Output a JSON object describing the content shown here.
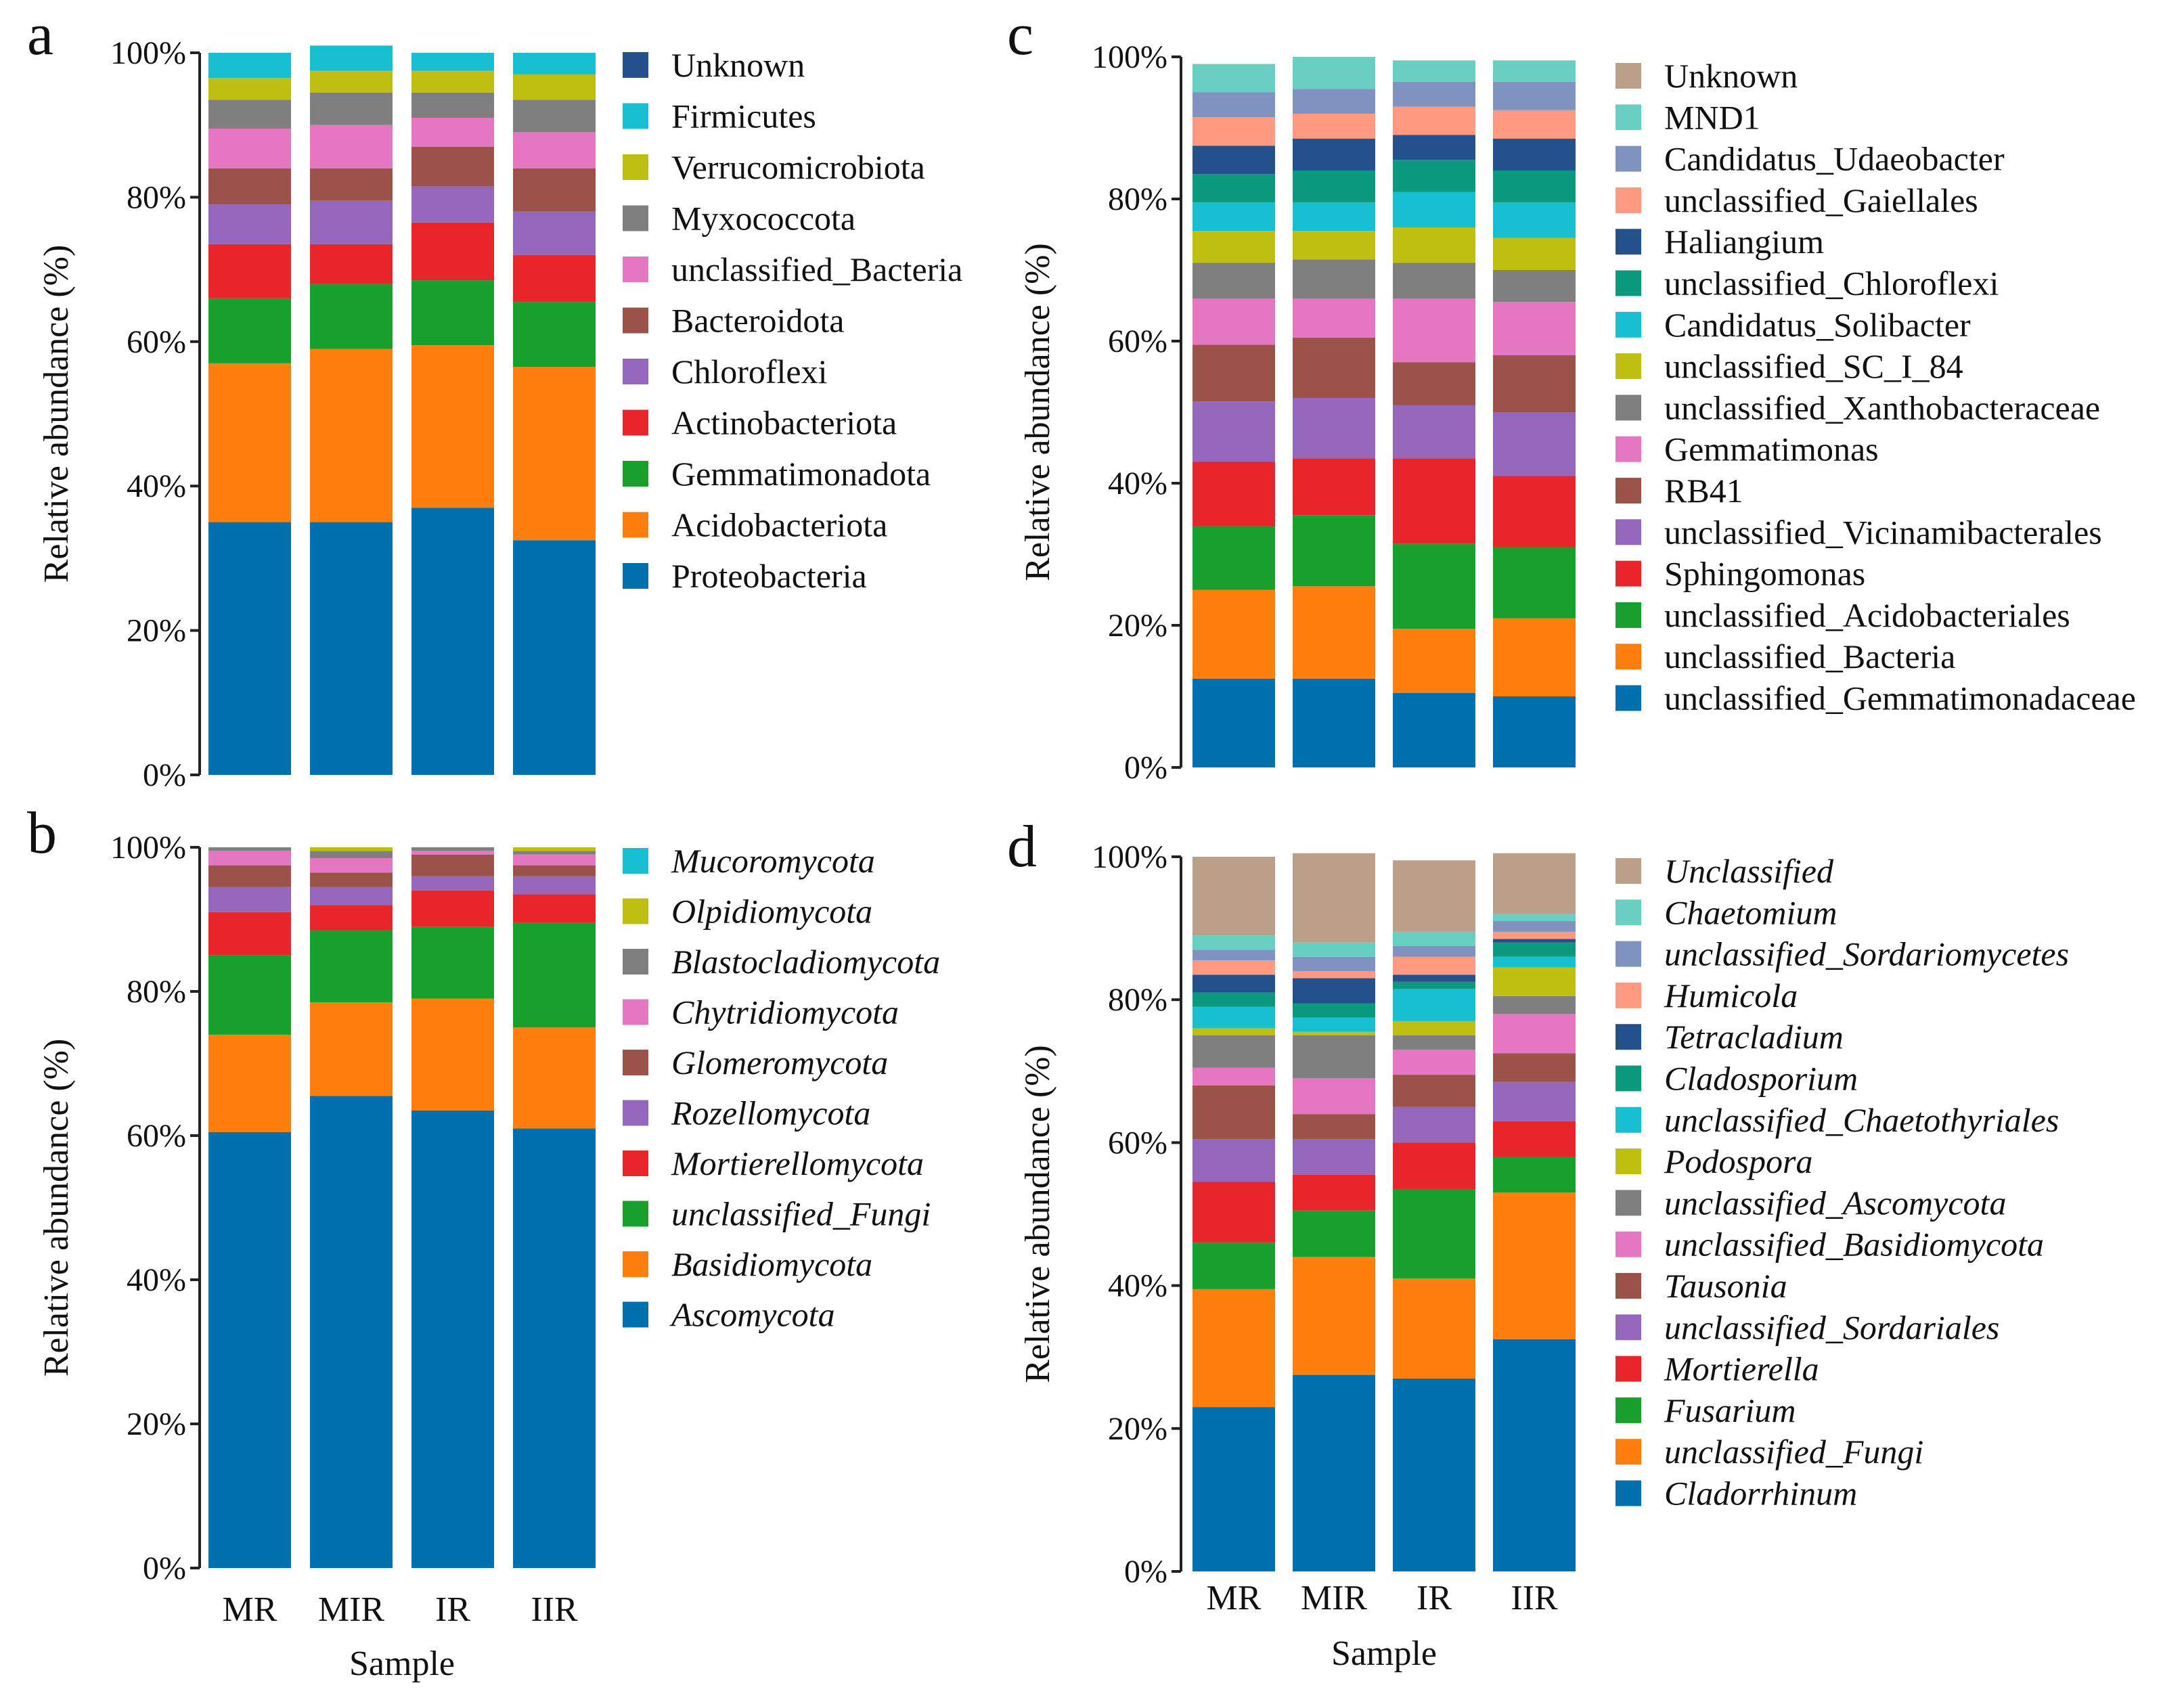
{
  "x_axis_title": "Sample",
  "y_axis_title": "Relative abundance (%)",
  "colors": {
    "blue": "#0070AE",
    "orange": "#FF7F0E",
    "green": "#17A02B",
    "red": "#E8252A",
    "purple": "#9467BD",
    "brown": "#9B5248",
    "pink": "#E577C2",
    "gray": "#7F7F7F",
    "olive": "#BFBF12",
    "cyan": "#17BFD0",
    "navy": "#24508B",
    "teal": "#0C9A7E",
    "salmon": "#FF9A80",
    "slate": "#7F92C0",
    "mint": "#68CFC2",
    "tan": "#BC9F88"
  },
  "chart_data": [
    {
      "panel": "a",
      "type": "bar",
      "stacked": true,
      "categories": [
        "MR",
        "MIR",
        "IR",
        "IIR"
      ],
      "ylim": [
        0,
        100
      ],
      "yticks": [
        "0%",
        "20%",
        "40%",
        "60%",
        "80%",
        "100%"
      ],
      "xlabel": "",
      "ylabel": "Relative abundance (%)",
      "italic_legend": false,
      "series": [
        {
          "name": "Proteobacteria",
          "color": "blue",
          "values": [
            35,
            35,
            37,
            32.5
          ]
        },
        {
          "name": "Acidobacteriota",
          "color": "orange",
          "values": [
            22,
            24,
            22.5,
            24
          ]
        },
        {
          "name": "Gemmatimonadota",
          "color": "green",
          "values": [
            9,
            9,
            9,
            9
          ]
        },
        {
          "name": "Actinobacteriota",
          "color": "red",
          "values": [
            7.5,
            5.5,
            8,
            6.5
          ]
        },
        {
          "name": "Chloroflexi",
          "color": "purple",
          "values": [
            5.5,
            6,
            5,
            6
          ]
        },
        {
          "name": "Bacteroidota",
          "color": "brown",
          "values": [
            5,
            4.5,
            5.5,
            6
          ]
        },
        {
          "name": "unclassified_Bacteria",
          "color": "pink",
          "values": [
            5.5,
            6,
            4,
            5
          ]
        },
        {
          "name": "Myxococcota",
          "color": "gray",
          "values": [
            4,
            4.5,
            3.5,
            4.5
          ]
        },
        {
          "name": "Verrucomicrobiota",
          "color": "olive",
          "values": [
            3,
            3,
            3,
            3.5
          ]
        },
        {
          "name": "Firmicutes",
          "color": "cyan",
          "values": [
            3.5,
            3.5,
            2.5,
            3
          ]
        },
        {
          "name": "Unknown",
          "color": "navy",
          "values": [
            0,
            0,
            0,
            0
          ]
        }
      ]
    },
    {
      "panel": "b",
      "type": "bar",
      "stacked": true,
      "categories": [
        "MR",
        "MIR",
        "IR",
        "IIR"
      ],
      "ylim": [
        0,
        100
      ],
      "yticks": [
        "0%",
        "20%",
        "40%",
        "60%",
        "80%",
        "100%"
      ],
      "xlabel": "Sample",
      "ylabel": "Relative abundance (%)",
      "italic_legend": true,
      "series": [
        {
          "name": "Ascomycota",
          "color": "blue",
          "values": [
            60.5,
            65.5,
            63.5,
            61
          ]
        },
        {
          "name": "Basidiomycota",
          "color": "orange",
          "values": [
            13.5,
            13,
            15.5,
            14
          ]
        },
        {
          "name": "unclassified_Fungi",
          "color": "green",
          "values": [
            11,
            10,
            10,
            14.5
          ]
        },
        {
          "name": "Mortierellomycota",
          "color": "red",
          "values": [
            6,
            3.5,
            5,
            4
          ]
        },
        {
          "name": "Rozellomycota",
          "color": "purple",
          "values": [
            3.5,
            2.5,
            2,
            2.5
          ]
        },
        {
          "name": "Glomeromycota",
          "color": "brown",
          "values": [
            3,
            2,
            3,
            1.5
          ]
        },
        {
          "name": "Chytridiomycota",
          "color": "pink",
          "values": [
            2,
            2,
            0.5,
            1.5
          ]
        },
        {
          "name": "Blastocladiomycota",
          "color": "gray",
          "values": [
            0.5,
            1,
            0.5,
            0.5
          ]
        },
        {
          "name": "Olpidiomycota",
          "color": "olive",
          "values": [
            0,
            0.5,
            0,
            0.5
          ]
        },
        {
          "name": "Mucoromycota",
          "color": "cyan",
          "values": [
            0,
            0,
            0,
            0
          ]
        }
      ]
    },
    {
      "panel": "c",
      "type": "bar",
      "stacked": true,
      "categories": [
        "MR",
        "MIR",
        "IR",
        "IIR"
      ],
      "ylim": [
        0,
        100
      ],
      "yticks": [
        "0%",
        "20%",
        "40%",
        "60%",
        "80%",
        "100%"
      ],
      "xlabel": "",
      "ylabel": "Relative abundance (%)",
      "italic_legend": false,
      "series": [
        {
          "name": "unclassified_Gemmatimonadaceae",
          "color": "blue",
          "values": [
            12.5,
            12.5,
            10.5,
            10
          ]
        },
        {
          "name": "unclassified_Bacteria",
          "color": "orange",
          "values": [
            12.5,
            13,
            9,
            11
          ]
        },
        {
          "name": "unclassified_Acidobacteriales",
          "color": "green",
          "values": [
            9,
            10,
            12,
            10
          ]
        },
        {
          "name": "Sphingomonas",
          "color": "red",
          "values": [
            9,
            8,
            12,
            10
          ]
        },
        {
          "name": "unclassified_Vicinamibacterales",
          "color": "purple",
          "values": [
            8.5,
            8.5,
            7.5,
            9
          ]
        },
        {
          "name": "RB41",
          "color": "brown",
          "values": [
            8,
            8.5,
            6,
            8
          ]
        },
        {
          "name": "Gemmatimonas",
          "color": "pink",
          "values": [
            6.5,
            5.5,
            9,
            7.5
          ]
        },
        {
          "name": "unclassified_Xanthobacteraceae",
          "color": "gray",
          "values": [
            5,
            5.5,
            5,
            4.5
          ]
        },
        {
          "name": "unclassified_SC_I_84",
          "color": "olive",
          "values": [
            4.5,
            4,
            5,
            4.5
          ]
        },
        {
          "name": "Candidatus_Solibacter",
          "color": "cyan",
          "values": [
            4,
            4,
            5,
            5
          ]
        },
        {
          "name": "unclassified_Chloroflexi",
          "color": "teal",
          "values": [
            4,
            4.5,
            4.5,
            4.5
          ]
        },
        {
          "name": "Haliangium",
          "color": "navy",
          "values": [
            4,
            4.5,
            3.5,
            4.5
          ]
        },
        {
          "name": "unclassified_Gaiellales",
          "color": "salmon",
          "values": [
            4,
            3.5,
            4,
            4
          ]
        },
        {
          "name": "Candidatus_Udaeobacter",
          "color": "slate",
          "values": [
            3.5,
            3.5,
            3.5,
            4
          ]
        },
        {
          "name": "MND1",
          "color": "mint",
          "values": [
            4,
            4.5,
            3,
            3
          ]
        },
        {
          "name": "Unknown",
          "color": "tan",
          "values": [
            0,
            0,
            0,
            0
          ]
        }
      ]
    },
    {
      "panel": "d",
      "type": "bar",
      "stacked": true,
      "categories": [
        "MR",
        "MIR",
        "IR",
        "IIR"
      ],
      "ylim": [
        0,
        100
      ],
      "yticks": [
        "0%",
        "20%",
        "40%",
        "60%",
        "80%",
        "100%"
      ],
      "xlabel": "Sample",
      "ylabel": "Relative abundance (%)",
      "italic_legend": true,
      "series": [
        {
          "name": "Cladorrhinum",
          "color": "blue",
          "values": [
            23,
            27.5,
            27,
            32.5
          ]
        },
        {
          "name": "unclassified_Fungi",
          "color": "orange",
          "values": [
            16.5,
            16.5,
            14,
            20.5
          ]
        },
        {
          "name": "Fusarium",
          "color": "green",
          "values": [
            6.5,
            6.5,
            12.5,
            5
          ]
        },
        {
          "name": "Mortierella",
          "color": "red",
          "values": [
            8.5,
            5,
            6.5,
            5
          ]
        },
        {
          "name": "unclassified_Sordariales",
          "color": "purple",
          "values": [
            6,
            5,
            5,
            5.5
          ]
        },
        {
          "name": "Tausonia",
          "color": "brown",
          "values": [
            7.5,
            3.5,
            4.5,
            4
          ]
        },
        {
          "name": "unclassified_Basidiomycota",
          "color": "pink",
          "values": [
            2.5,
            5,
            3.5,
            5.5
          ]
        },
        {
          "name": "unclassified_Ascomycota",
          "color": "gray",
          "values": [
            4.5,
            6,
            2,
            2.5
          ]
        },
        {
          "name": "Podospora",
          "color": "olive",
          "values": [
            1,
            0.5,
            2,
            4
          ]
        },
        {
          "name": "unclassified_Chaetothyriales",
          "color": "cyan",
          "values": [
            3,
            2,
            4.5,
            1.5
          ]
        },
        {
          "name": "Cladosporium",
          "color": "teal",
          "values": [
            2,
            2,
            1,
            2
          ]
        },
        {
          "name": "Tetracladium",
          "color": "navy",
          "values": [
            2.5,
            3.5,
            1,
            0.5
          ]
        },
        {
          "name": "Humicola",
          "color": "salmon",
          "values": [
            2,
            1,
            2.5,
            1
          ]
        },
        {
          "name": "unclassified_Sordariomycetes",
          "color": "slate",
          "values": [
            1.5,
            2,
            1.5,
            1.5
          ]
        },
        {
          "name": "Chaetomium",
          "color": "mint",
          "values": [
            2,
            2,
            2,
            1
          ]
        },
        {
          "name": "Unclassified",
          "color": "tan",
          "values": [
            11,
            12.5,
            10,
            8.5
          ]
        }
      ]
    }
  ]
}
